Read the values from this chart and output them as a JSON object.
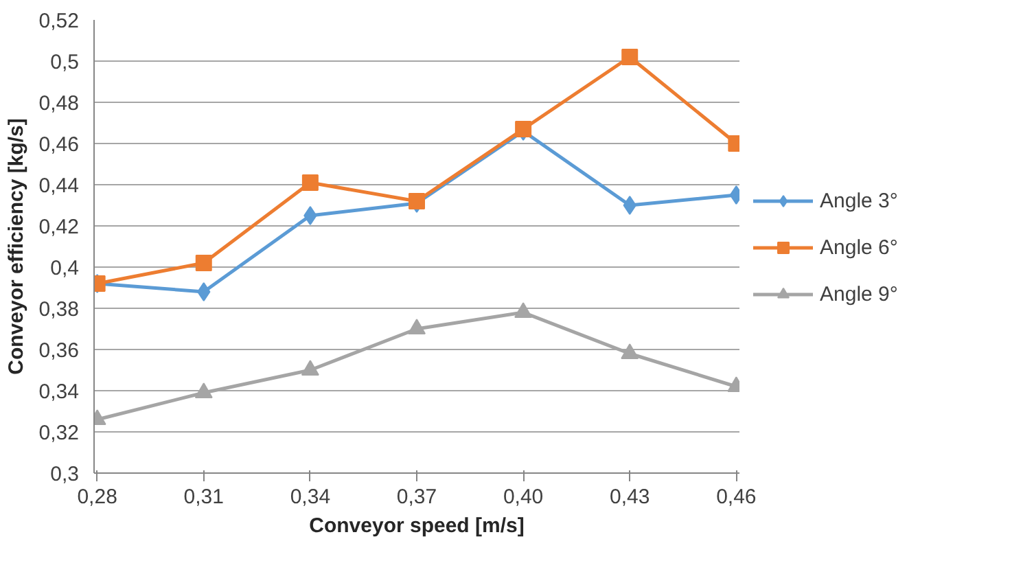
{
  "chart_data": {
    "type": "line",
    "xlabel": "Conveyor speed [m/s]",
    "ylabel": "Conveyor efficiency [kg/s]",
    "categories": [
      "0,28",
      "0,31",
      "0,34",
      "0,37",
      "0,40",
      "0,43",
      "0,46"
    ],
    "series": [
      {
        "name": "Angle 3°",
        "color": "#5b9bd5",
        "marker": "diamond",
        "values": [
          0.392,
          0.388,
          0.425,
          0.431,
          0.466,
          0.43,
          0.435
        ]
      },
      {
        "name": "Angle 6°",
        "color": "#ed7d31",
        "marker": "square",
        "values": [
          0.392,
          0.402,
          0.441,
          0.432,
          0.467,
          0.502,
          0.46
        ]
      },
      {
        "name": "Angle 9°",
        "color": "#a5a5a5",
        "marker": "triangle",
        "values": [
          0.326,
          0.339,
          0.35,
          0.37,
          0.378,
          0.358,
          0.342
        ]
      }
    ],
    "ylim": [
      0.3,
      0.52
    ],
    "yticks": [
      {
        "value": 0.3,
        "label": "0,3"
      },
      {
        "value": 0.32,
        "label": "0,32"
      },
      {
        "value": 0.34,
        "label": "0,34"
      },
      {
        "value": 0.36,
        "label": "0,36"
      },
      {
        "value": 0.38,
        "label": "0,38"
      },
      {
        "value": 0.4,
        "label": "0,4"
      },
      {
        "value": 0.42,
        "label": "0,42"
      },
      {
        "value": 0.44,
        "label": "0,44"
      },
      {
        "value": 0.46,
        "label": "0,46"
      },
      {
        "value": 0.48,
        "label": "0,48"
      },
      {
        "value": 0.5,
        "label": "0,5"
      },
      {
        "value": 0.52,
        "label": "0,52"
      }
    ],
    "grid": "y",
    "legend": "right",
    "line_style": "solid"
  }
}
